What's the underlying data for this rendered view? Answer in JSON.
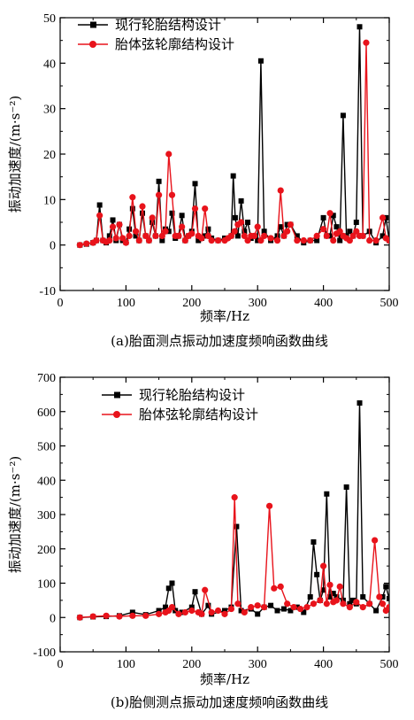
{
  "chart_data": [
    {
      "type": "line",
      "title": "",
      "caption": "(a)胎面测点振动加速度频响函数曲线",
      "xlabel": "频率/Hz",
      "ylabel": "振动加速度/(m·s⁻²)",
      "xlim": [
        0,
        500
      ],
      "ylim": [
        -10,
        50
      ],
      "xticks": [
        0,
        100,
        200,
        300,
        400,
        500
      ],
      "yticks": [
        -10,
        0,
        10,
        20,
        30,
        40,
        50
      ],
      "legend_position": "top-left",
      "grid": false,
      "series": [
        {
          "name": "现行轮胎结构设计",
          "color": "#000000",
          "marker": "square",
          "x": [
            30,
            40,
            50,
            55,
            60,
            65,
            70,
            75,
            80,
            85,
            90,
            95,
            100,
            105,
            110,
            115,
            120,
            125,
            130,
            135,
            140,
            145,
            150,
            155,
            160,
            165,
            170,
            175,
            180,
            185,
            190,
            195,
            200,
            205,
            210,
            215,
            220,
            225,
            230,
            240,
            250,
            260,
            263,
            266,
            270,
            275,
            280,
            285,
            290,
            295,
            300,
            305,
            310,
            320,
            330,
            335,
            340,
            345,
            350,
            360,
            370,
            380,
            390,
            400,
            405,
            410,
            415,
            420,
            425,
            430,
            435,
            440,
            445,
            450,
            455,
            460,
            470,
            480,
            490,
            495,
            500
          ],
          "values": [
            0,
            0.2,
            0.5,
            1,
            8.8,
            1,
            0.5,
            2,
            5.5,
            1,
            4.5,
            1,
            0.6,
            3.5,
            8,
            2,
            1,
            7,
            2,
            1,
            5,
            2,
            14,
            1,
            3.5,
            3,
            7,
            1.5,
            2,
            6.5,
            1,
            2,
            3,
            13.5,
            1,
            1.5,
            2,
            3.5,
            1.5,
            1,
            1.5,
            2,
            15.2,
            6,
            2,
            9.7,
            3,
            5,
            1.5,
            2,
            1,
            40.5,
            3,
            1,
            2,
            4,
            2,
            4.5,
            4.5,
            2,
            0.5,
            1,
            1,
            6,
            2,
            2,
            6.5,
            4,
            1,
            28.5,
            2,
            3,
            2,
            5,
            48,
            2,
            3,
            0.5,
            2,
            6,
            1
          ]
        },
        {
          "name": "胎体弦轮廓结构设计",
          "color": "#e8131b",
          "marker": "circle",
          "x": [
            30,
            40,
            50,
            55,
            60,
            65,
            70,
            75,
            80,
            85,
            90,
            95,
            100,
            105,
            110,
            115,
            120,
            125,
            130,
            135,
            140,
            145,
            150,
            155,
            160,
            165,
            170,
            175,
            180,
            185,
            190,
            195,
            200,
            205,
            210,
            215,
            220,
            225,
            230,
            240,
            250,
            255,
            260,
            265,
            270,
            275,
            280,
            285,
            290,
            295,
            300,
            305,
            310,
            320,
            330,
            335,
            340,
            345,
            350,
            360,
            370,
            380,
            390,
            400,
            405,
            410,
            415,
            420,
            425,
            430,
            435,
            440,
            445,
            450,
            455,
            460,
            465,
            470,
            480,
            490,
            495,
            500
          ],
          "values": [
            0,
            0.3,
            0.5,
            1,
            6.5,
            1,
            0.7,
            1,
            4,
            1.5,
            4.5,
            1.5,
            0.5,
            2,
            10.5,
            3,
            1,
            8.5,
            2,
            1,
            6,
            2,
            11,
            2,
            3,
            20,
            11,
            2,
            2,
            4,
            1,
            2,
            2.5,
            8,
            2,
            1.5,
            8,
            2,
            1,
            1,
            1,
            1.5,
            2,
            3,
            4.5,
            5,
            2,
            1,
            2,
            2,
            4,
            1,
            2,
            1.5,
            1,
            12,
            2,
            3,
            4.5,
            1,
            1,
            1,
            2,
            3.5,
            2,
            7,
            1,
            2.5,
            3,
            2,
            1.5,
            1,
            2,
            3,
            2,
            2,
            44.5,
            1,
            1,
            6,
            1.5,
            1
          ]
        }
      ]
    },
    {
      "type": "line",
      "title": "",
      "caption": "(b)胎侧测点振动加速度频响函数曲线",
      "xlabel": "频率/Hz",
      "ylabel": "振动加速度/(m·s⁻²)",
      "xlim": [
        0,
        500
      ],
      "ylim": [
        -100,
        700
      ],
      "xticks": [
        0,
        100,
        200,
        300,
        400,
        500
      ],
      "yticks": [
        -100,
        0,
        100,
        200,
        300,
        400,
        500,
        600,
        700
      ],
      "legend_position": "top-left",
      "grid": false,
      "series": [
        {
          "name": "现行轮胎结构设计",
          "color": "#000000",
          "marker": "square",
          "x": [
            30,
            50,
            70,
            90,
            110,
            130,
            150,
            160,
            165,
            170,
            175,
            185,
            200,
            205,
            215,
            225,
            230,
            250,
            260,
            268,
            275,
            290,
            300,
            310,
            320,
            330,
            340,
            350,
            360,
            370,
            380,
            385,
            390,
            395,
            400,
            405,
            410,
            415,
            420,
            430,
            435,
            440,
            445,
            450,
            455,
            460,
            470,
            480,
            490,
            495,
            500
          ],
          "values": [
            0,
            2,
            3,
            5,
            15,
            8,
            20,
            30,
            85,
            100,
            20,
            15,
            30,
            75,
            10,
            35,
            10,
            20,
            30,
            265,
            20,
            25,
            10,
            30,
            35,
            20,
            25,
            20,
            30,
            15,
            60,
            220,
            125,
            50,
            80,
            360,
            60,
            70,
            60,
            50,
            380,
            40,
            50,
            40,
            625,
            60,
            40,
            20,
            60,
            90,
            55
          ]
        },
        {
          "name": "胎体弦轮廓结构设计",
          "color": "#e8131b",
          "marker": "circle",
          "x": [
            30,
            50,
            70,
            90,
            110,
            130,
            150,
            160,
            165,
            170,
            180,
            190,
            200,
            210,
            215,
            220,
            230,
            240,
            250,
            260,
            265,
            270,
            280,
            290,
            300,
            310,
            318,
            325,
            335,
            345,
            355,
            365,
            375,
            385,
            395,
            400,
            405,
            410,
            415,
            420,
            425,
            430,
            440,
            450,
            460,
            470,
            478,
            485,
            490,
            495,
            500
          ],
          "values": [
            0,
            3,
            5,
            3,
            5,
            5,
            10,
            15,
            20,
            30,
            10,
            15,
            20,
            15,
            10,
            80,
            15,
            20,
            10,
            25,
            350,
            40,
            15,
            30,
            35,
            30,
            325,
            85,
            90,
            40,
            30,
            25,
            30,
            40,
            50,
            150,
            40,
            95,
            45,
            50,
            90,
            40,
            30,
            45,
            30,
            40,
            225,
            60,
            40,
            20,
            30
          ]
        }
      ]
    }
  ]
}
